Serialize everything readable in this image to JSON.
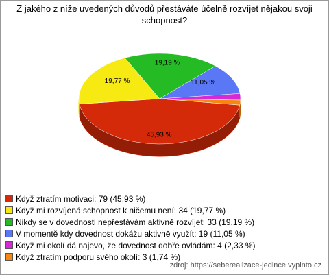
{
  "chart_data": {
    "type": "pie3d",
    "title": "Z jakého z níže uvedených důvodů přestáváte účelně rozvíjet nějakou svoji schopnost?",
    "categories": [
      "Když ztratím motivaci: 79 (45,93 %)",
      "Když mi rozvíjená schopnost k ničemu není: 34 (19,77 %)",
      "Nikdy se v dovednosti nepřestávám aktivně rozvíjet: 33 (19,19 %)",
      "V momentě kdy dovednost dokážu aktivně využít: 19 (11,05 %)",
      "Když mi okolí dá najevo, že dovednost dobře ovládám: 4 (2,33 %)",
      "Když ztratím podporu svého okolí: 3 (1,74 %)"
    ],
    "values": [
      45.93,
      19.77,
      19.19,
      11.05,
      2.33,
      1.74
    ],
    "value_labels": [
      "45,93 %",
      "19,77 %",
      "19,19 %",
      "11,05 %",
      null,
      null
    ],
    "colors": [
      "#d42a0a",
      "#f7e912",
      "#24bb24",
      "#5a78f5",
      "#d52ad5",
      "#f5880f"
    ],
    "source": "zdroj: https://seberealizace-jedince.vyplnto.cz"
  }
}
